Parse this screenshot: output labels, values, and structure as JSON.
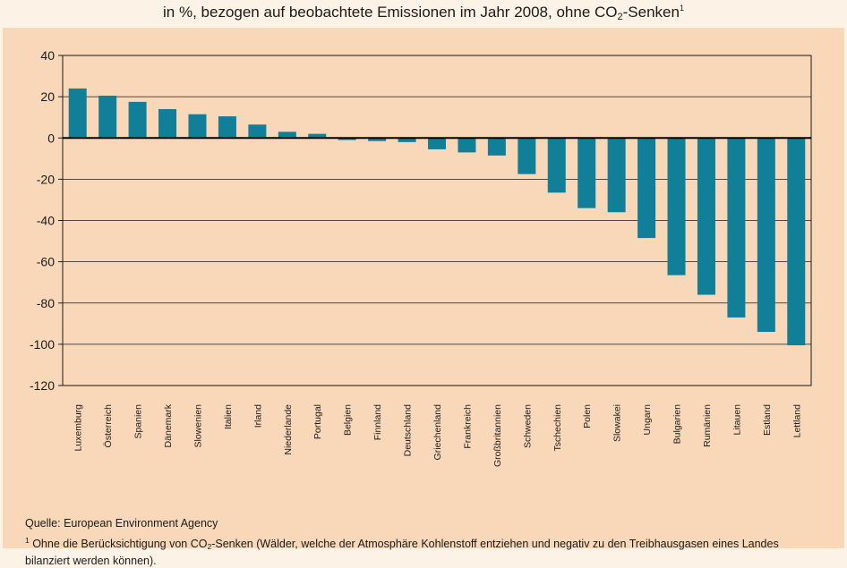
{
  "title": {
    "prefix": "in %, bezogen auf beobachtete Emissionen im Jahr 2008, ohne CO",
    "sub": "2",
    "suffix": "-Senken",
    "sup": "1"
  },
  "source": "Quelle: European Environment Agency",
  "footnote": {
    "mark": "1",
    "prefix": " Ohne die Berücksichtigung von CO",
    "sub": "2",
    "suffix": "-Senken (Wälder, welche der Atmosphäre Kohlenstoff entziehen und negativ zu den Treibhausgasen eines Landes bilanziert werden können)."
  },
  "colors": {
    "bar": "#127f99",
    "background": "#fdf2e6",
    "plot_background": "#f8d8b8",
    "grid": "#1a1a1a"
  },
  "chart_data": {
    "type": "bar",
    "title": "",
    "xlabel": "",
    "ylabel": "",
    "ylim": [
      -120,
      40
    ],
    "yticks": [
      40,
      20,
      0,
      -20,
      -40,
      -60,
      -80,
      -100,
      -120
    ],
    "grid": true,
    "categories": [
      "Luxemburg",
      "Österreich",
      "Spanien",
      "Dänemark",
      "Slowenien",
      "Italien",
      "Irland",
      "Niederlande",
      "Portugal",
      "Belgien",
      "Finnland",
      "Deutschland",
      "Griechenland",
      "Frankreich",
      "Großbritannien",
      "Schweden",
      "Tschechien",
      "Polen",
      "Slowakei",
      "Ungarn",
      "Bulgarien",
      "Rumänien",
      "Litauen",
      "Estland",
      "Lettland"
    ],
    "values": [
      24,
      20.5,
      17.5,
      14,
      11.5,
      10.5,
      6.5,
      3,
      2,
      -1,
      -1.5,
      -2,
      -5.5,
      -7,
      -8.5,
      -17.5,
      -26.5,
      -34,
      -36,
      -48.5,
      -66.5,
      -76,
      -87,
      -94,
      -100.5
    ]
  }
}
